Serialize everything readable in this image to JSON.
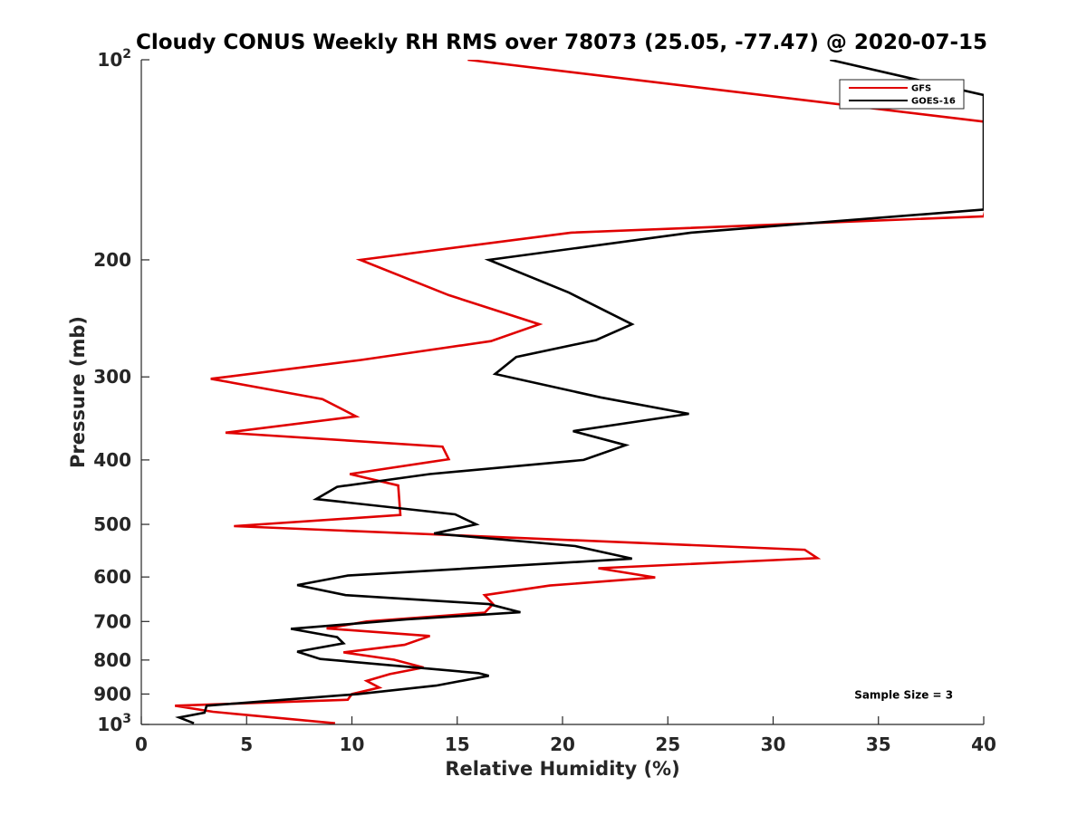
{
  "chart_data": {
    "type": "line",
    "title": "Cloudy CONUS Weekly RH RMS over 78073 (25.05, -77.47) @ 2020-07-15",
    "xlabel": "Relative Humidity (%)",
    "ylabel": "Pressure (mb)",
    "xlim": [
      0,
      40
    ],
    "ylim": [
      100,
      1000
    ],
    "y_scale": "log",
    "y_reversed": true,
    "x_ticks": [
      "0",
      "5",
      "10",
      "15",
      "20",
      "25",
      "30",
      "35",
      "40"
    ],
    "y_ticks": [
      {
        "value": 100,
        "base": "10",
        "exp": "2"
      },
      {
        "value": 200,
        "label": "200"
      },
      {
        "value": 300,
        "label": "300"
      },
      {
        "value": 400,
        "label": "400"
      },
      {
        "value": 500,
        "label": "500"
      },
      {
        "value": 600,
        "label": "600"
      },
      {
        "value": 700,
        "label": "700"
      },
      {
        "value": 800,
        "label": "800"
      },
      {
        "value": 900,
        "label": "900"
      },
      {
        "value": 1000,
        "base": "10",
        "exp": "3"
      }
    ],
    "grid": false,
    "legend_position": "top-right",
    "series": [
      {
        "name": "GFS",
        "color": "#e00000",
        "points": [
          [
            15.5,
            100
          ],
          [
            41.0,
            125
          ],
          [
            40.0,
            172
          ],
          [
            20.4,
            182
          ],
          [
            10.4,
            200
          ],
          [
            14.6,
            226
          ],
          [
            18.9,
            250
          ],
          [
            16.6,
            265
          ],
          [
            10.4,
            283
          ],
          [
            3.3,
            302
          ],
          [
            8.6,
            324
          ],
          [
            10.2,
            344
          ],
          [
            4.0,
            364
          ],
          [
            14.3,
            382
          ],
          [
            14.6,
            399
          ],
          [
            9.9,
            420
          ],
          [
            12.2,
            437
          ],
          [
            12.3,
            484
          ],
          [
            4.4,
            503
          ],
          [
            31.5,
            546
          ],
          [
            32.1,
            562
          ],
          [
            21.7,
            582
          ],
          [
            24.4,
            601
          ],
          [
            19.4,
            618
          ],
          [
            16.3,
            639
          ],
          [
            16.7,
            659
          ],
          [
            16.3,
            679
          ],
          [
            10.7,
            700
          ],
          [
            8.8,
            717
          ],
          [
            13.7,
            736
          ],
          [
            12.5,
            759
          ],
          [
            9.6,
            779
          ],
          [
            12.0,
            799
          ],
          [
            13.4,
            821
          ],
          [
            11.8,
            840
          ],
          [
            10.7,
            860
          ],
          [
            11.3,
            880
          ],
          [
            10.0,
            900
          ],
          [
            9.8,
            918
          ],
          [
            1.6,
            937
          ],
          [
            3.4,
            957
          ],
          [
            9.2,
            996
          ]
        ]
      },
      {
        "name": "GOES-16",
        "color": "#000000",
        "points": [
          [
            32.7,
            100
          ],
          [
            40.0,
            113
          ],
          [
            40.0,
            168
          ],
          [
            26.1,
            182
          ],
          [
            16.5,
            200
          ],
          [
            20.3,
            224
          ],
          [
            23.3,
            250
          ],
          [
            21.6,
            264
          ],
          [
            17.8,
            280
          ],
          [
            16.8,
            297
          ],
          [
            21.8,
            322
          ],
          [
            26.0,
            341
          ],
          [
            20.5,
            362
          ],
          [
            23.0,
            380
          ],
          [
            21.0,
            400
          ],
          [
            13.7,
            420
          ],
          [
            9.3,
            439
          ],
          [
            8.3,
            458
          ],
          [
            14.9,
            483
          ],
          [
            15.9,
            500
          ],
          [
            13.9,
            516
          ],
          [
            20.6,
            539
          ],
          [
            23.3,
            563
          ],
          [
            9.8,
            597
          ],
          [
            7.4,
            617
          ],
          [
            9.7,
            639
          ],
          [
            16.5,
            659
          ],
          [
            18.0,
            678
          ],
          [
            12.6,
            695
          ],
          [
            7.1,
            718
          ],
          [
            9.3,
            739
          ],
          [
            9.6,
            755
          ],
          [
            7.4,
            777
          ],
          [
            8.5,
            797
          ],
          [
            16.0,
            837
          ],
          [
            16.5,
            845
          ],
          [
            14.0,
            874
          ],
          [
            10.3,
            900
          ],
          [
            3.1,
            937
          ],
          [
            3.0,
            960
          ],
          [
            1.8,
            976
          ],
          [
            2.5,
            996
          ]
        ]
      }
    ],
    "annotations": [
      {
        "text": "Sample Size = 3",
        "x": 36.2,
        "y": 903
      }
    ]
  }
}
